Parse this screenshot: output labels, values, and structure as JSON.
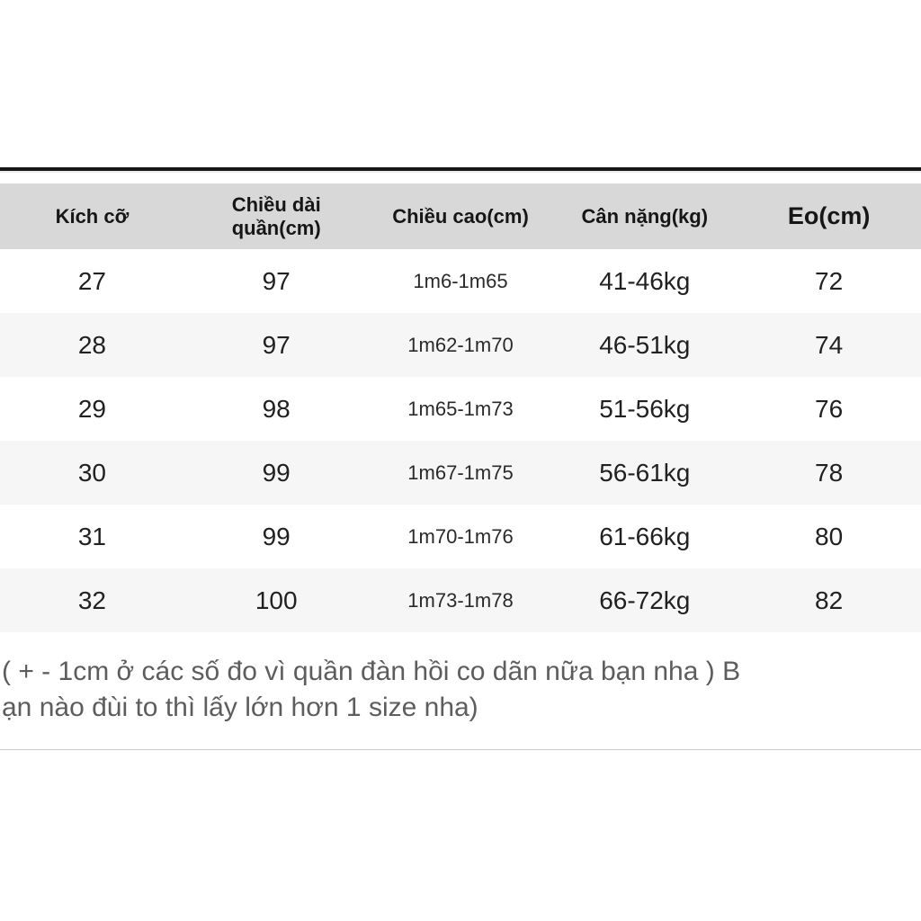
{
  "page": {
    "background_color": "#ffffff",
    "top_rule_color": "#171717",
    "bottom_divider_color": "#c9c9c9"
  },
  "table": {
    "header_bg_color": "#d8d8d8",
    "alt_row_bg_color": "#f5f6f5",
    "header_text_color": "#161616",
    "cell_text_color": "#212121",
    "columns": [
      "Kích cỡ",
      "Chiều dài\nquần(cm)",
      "Chiều cao(cm)",
      "Cân nặng(kg)",
      "Eo(cm)"
    ],
    "rows": [
      [
        "27",
        "97",
        "1m6-1m65",
        "41-46kg",
        "72"
      ],
      [
        "28",
        "97",
        "1m62-1m70",
        "46-51kg",
        "74"
      ],
      [
        "29",
        "98",
        "1m65-1m73",
        "51-56kg",
        "76"
      ],
      [
        "30",
        "99",
        "1m67-1m75",
        "56-61kg",
        "78"
      ],
      [
        "31",
        "99",
        "1m70-1m76",
        "61-66kg",
        "80"
      ],
      [
        "32",
        "100",
        "1m73-1m78",
        "66-72kg",
        "82"
      ]
    ]
  },
  "note": {
    "text_color": "#5d5d5d",
    "line1": "( + - 1cm ở các số đo vì quần đàn hồi co dãn nữa bạn nha ) B",
    "line2": "ạn nào đùi to thì lấy lớn hơn 1 size nha)"
  }
}
